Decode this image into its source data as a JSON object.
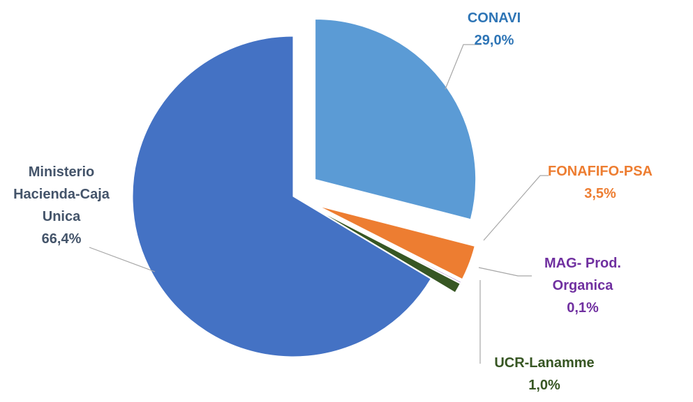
{
  "chart_data": {
    "type": "pie",
    "categories": [
      "CONAVI",
      "FONAFIFO-PSA",
      "MAG- Prod. Organica",
      "UCR-Lanamme",
      "Ministerio Hacienda-Caja Unica"
    ],
    "values": [
      29.0,
      3.5,
      0.1,
      1.0,
      66.4
    ],
    "value_labels": [
      "29,0%",
      "3,5%",
      "0,1%",
      "1,0%",
      "66,4%"
    ],
    "colors": [
      "#5b9bd5",
      "#ed7d31",
      "#7030a0",
      "#375623",
      "#4472c4"
    ]
  }
}
